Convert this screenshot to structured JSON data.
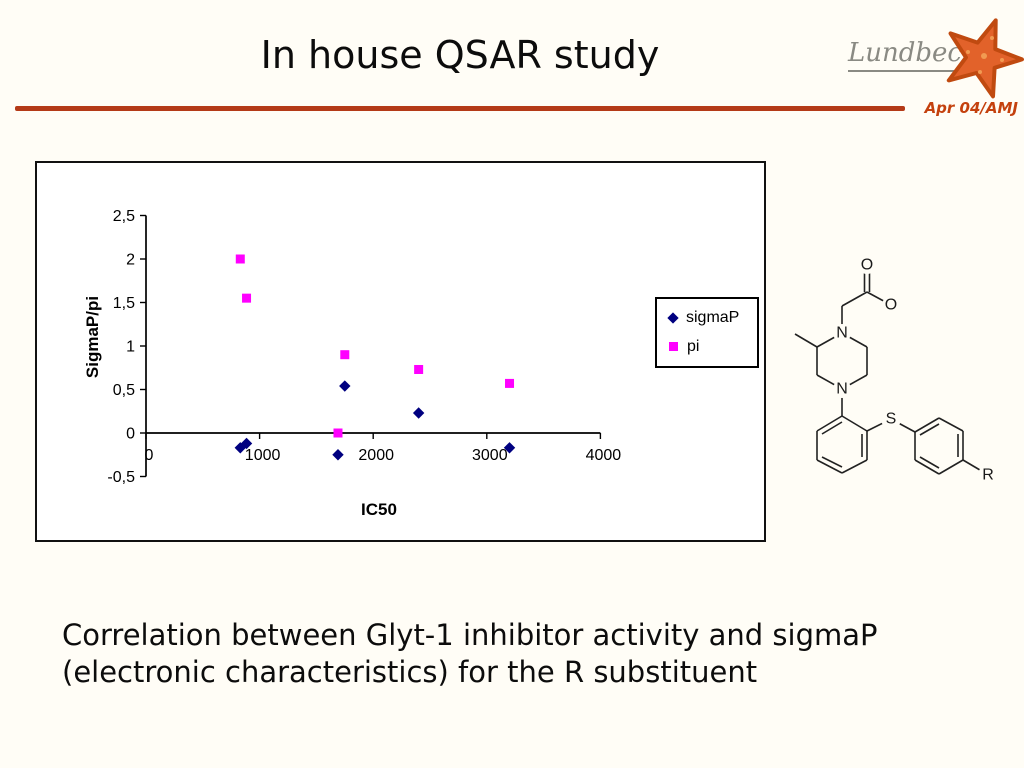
{
  "slide": {
    "title": "In house QSAR study",
    "date_label": "Apr 04/AMJ",
    "logo_text": "Lundbeck",
    "caption_line1": "Correlation between Glyt-1 inhibitor activity and sigmaP",
    "caption_line2": "(electronic characteristics) for the R substituent"
  },
  "colors": {
    "rule": "#b43a17",
    "date_text": "#c4410e",
    "sigmaP_marker": "#000080",
    "pi_marker": "#ff00ff",
    "axis": "#000000",
    "starfish_fill": "#e2622a",
    "starfish_outline": "#c04a10",
    "logo_gray": "#8a8a83"
  },
  "chart_data": {
    "type": "scatter",
    "title": "",
    "xlabel": "IC50",
    "ylabel": "SigmaP/pi",
    "xlim": [
      0,
      4000
    ],
    "ylim": [
      -0.5,
      2.5
    ],
    "x_ticks": [
      0,
      1000,
      2000,
      3000,
      4000
    ],
    "x_tick_labels": [
      "0",
      "1000",
      "2000",
      "3000",
      "4000"
    ],
    "y_ticks": [
      2.5,
      2,
      1.5,
      1,
      0.5,
      0,
      -0.5
    ],
    "y_tick_labels": [
      "2,5",
      "2",
      "1,5",
      "1",
      "0,5",
      "0",
      "-0,5"
    ],
    "grid": false,
    "legend_position": "middle-right",
    "series": [
      {
        "name": "sigmaP",
        "marker": "diamond",
        "color": "#000080",
        "points": [
          [
            830,
            -0.17
          ],
          [
            885,
            -0.12
          ],
          [
            1690,
            -0.25
          ],
          [
            1750,
            0.54
          ],
          [
            2400,
            0.23
          ],
          [
            3200,
            -0.17
          ]
        ]
      },
      {
        "name": "pi",
        "marker": "square",
        "color": "#ff00ff",
        "points": [
          [
            830,
            2.0
          ],
          [
            885,
            1.55
          ],
          [
            1690,
            0.0
          ],
          [
            1750,
            0.9
          ],
          [
            2400,
            0.73
          ],
          [
            3200,
            0.57
          ]
        ]
      }
    ]
  },
  "molecule": {
    "atom_labels": {
      "carbonyl_o": "O",
      "ester_o": "O",
      "n_top": "N",
      "n_bottom": "N",
      "sulfur": "S",
      "r_group": "R"
    }
  }
}
